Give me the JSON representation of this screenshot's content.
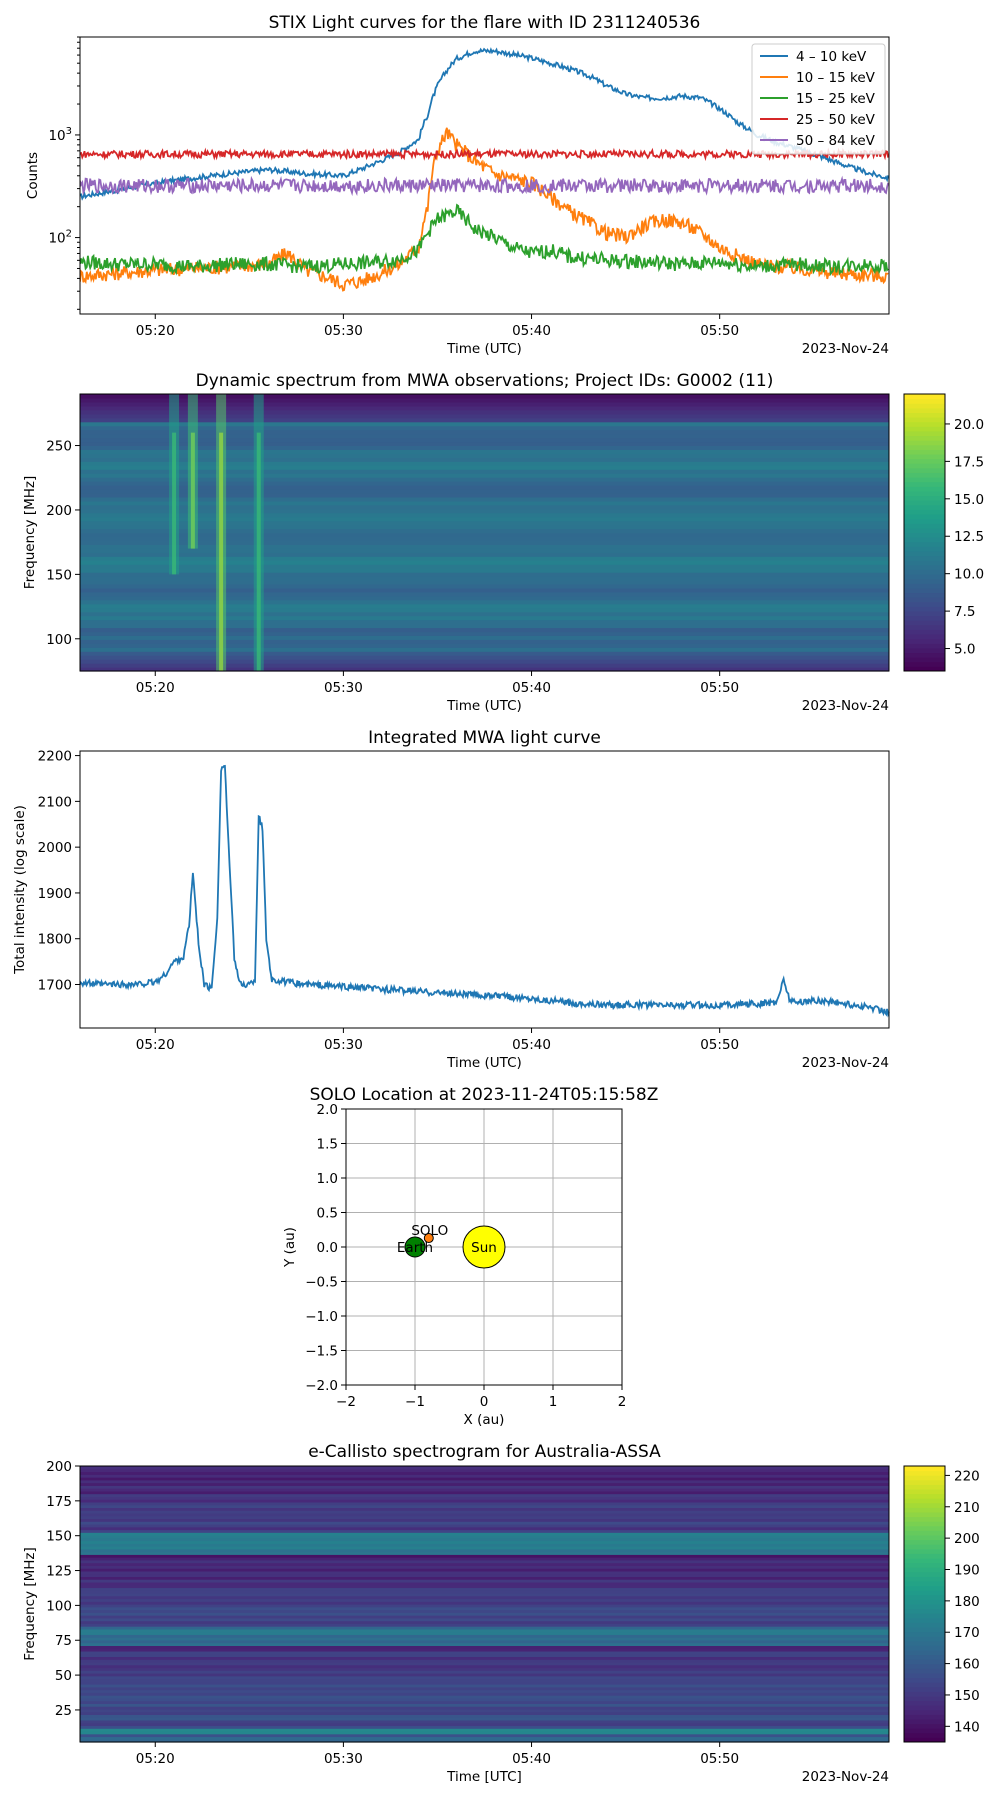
{
  "chart_data": [
    {
      "type": "line",
      "title": "STIX Light curves for the flare with ID 2311240536",
      "xlabel": "Time (UTC)",
      "ylabel": "Counts",
      "date_label": "2023-Nov-24",
      "yscale": "log",
      "xlim": [
        "05:16",
        "05:59"
      ],
      "ylim": [
        18,
        9000
      ],
      "xticks": [
        "05:20",
        "05:30",
        "05:40",
        "05:50"
      ],
      "yticks": [
        {
          "label": "10",
          "exp": "2",
          "value": 100
        },
        {
          "label": "10",
          "exp": "3",
          "value": 1000
        }
      ],
      "legend_position": "top-right",
      "series": [
        {
          "name": "4 – 10 keV",
          "color": "#1f77b4",
          "x": [
            16,
            18,
            20,
            22,
            24,
            26,
            28,
            30,
            31,
            32,
            33,
            34,
            34.5,
            35,
            36,
            37,
            38,
            39,
            40,
            41,
            42,
            43,
            44,
            45,
            46,
            47,
            48,
            49,
            50,
            51,
            52,
            53,
            54,
            55,
            56,
            57,
            58,
            59
          ],
          "y": [
            250,
            290,
            340,
            380,
            420,
            460,
            420,
            400,
            470,
            560,
            680,
            900,
            1600,
            3000,
            5500,
            6600,
            6600,
            6100,
            5600,
            5000,
            4400,
            3800,
            3000,
            2500,
            2300,
            2300,
            2400,
            2300,
            1800,
            1300,
            1000,
            850,
            750,
            650,
            560,
            480,
            420,
            380
          ]
        },
        {
          "name": "10 – 15 keV",
          "color": "#ff7f0e",
          "x": [
            16,
            18,
            20,
            22,
            24,
            26,
            27,
            28,
            29,
            30,
            31,
            32,
            33,
            34,
            34.5,
            35,
            35.5,
            36,
            37,
            38,
            39,
            40,
            41,
            42,
            43,
            44,
            45,
            46,
            47,
            48,
            49,
            50,
            51,
            52,
            53,
            54,
            55,
            56,
            57,
            58,
            59
          ],
          "y": [
            42,
            45,
            48,
            50,
            52,
            55,
            70,
            48,
            42,
            35,
            38,
            45,
            55,
            80,
            200,
            700,
            1050,
            800,
            550,
            420,
            380,
            340,
            250,
            180,
            140,
            110,
            100,
            130,
            150,
            140,
            110,
            80,
            65,
            55,
            52,
            50,
            48,
            45,
            44,
            43,
            42
          ]
        },
        {
          "name": "15 – 25 keV",
          "color": "#2ca02c",
          "x": [
            16,
            18,
            20,
            22,
            24,
            26,
            28,
            30,
            32,
            33,
            34,
            35,
            36,
            37,
            38,
            39,
            40,
            41,
            42,
            44,
            46,
            48,
            50,
            52,
            54,
            56,
            58,
            59
          ],
          "y": [
            58,
            55,
            55,
            52,
            55,
            55,
            52,
            55,
            58,
            62,
            75,
            150,
            180,
            120,
            100,
            80,
            70,
            75,
            65,
            60,
            58,
            55,
            58,
            52,
            55,
            52,
            55,
            52
          ]
        },
        {
          "name": "25 – 50 keV",
          "color": "#d62728",
          "x": [
            16,
            20,
            25,
            30,
            35,
            40,
            45,
            50,
            55,
            59
          ],
          "y": [
            650,
            650,
            650,
            650,
            650,
            650,
            650,
            650,
            650,
            650
          ]
        },
        {
          "name": "50 – 84 keV",
          "color": "#9467bd",
          "x": [
            16,
            20,
            25,
            30,
            35,
            40,
            45,
            50,
            55,
            59
          ],
          "y": [
            320,
            320,
            320,
            320,
            320,
            320,
            320,
            320,
            320,
            320
          ]
        }
      ]
    },
    {
      "type": "heatmap",
      "title": "Dynamic spectrum from MWA observations; Project IDs: G0002 (11)",
      "xlabel": "Time (UTC)",
      "ylabel": "Frequency [MHz]",
      "date_label": "2023-Nov-24",
      "xlim": [
        "05:16",
        "05:59"
      ],
      "ylim": [
        75,
        290
      ],
      "xticks": [
        "05:20",
        "05:30",
        "05:40",
        "05:50"
      ],
      "yticks": [
        100,
        150,
        200,
        250
      ],
      "colorbar": {
        "colormap": "viridis",
        "min": 3.5,
        "max": 22,
        "ticks": [
          "5.0",
          "7.5",
          "10.0",
          "12.5",
          "15.0",
          "17.5",
          "20.0"
        ]
      },
      "bursts": [
        {
          "t": 21.0,
          "f_low": 150,
          "f_high": 290,
          "value": 14
        },
        {
          "t": 22.0,
          "f_low": 170,
          "f_high": 290,
          "value": 16
        },
        {
          "t": 23.5,
          "f_low": 75,
          "f_high": 290,
          "value": 17
        },
        {
          "t": 25.5,
          "f_low": 75,
          "f_high": 290,
          "value": 14
        }
      ]
    },
    {
      "type": "line",
      "title": "Integrated MWA light curve",
      "xlabel": "Time (UTC)",
      "ylabel": "Total intensity (log scale)",
      "date_label": "2023-Nov-24",
      "xlim": [
        "05:16",
        "05:59"
      ],
      "ylim": [
        1605,
        2210
      ],
      "xticks": [
        "05:20",
        "05:30",
        "05:40",
        "05:50"
      ],
      "yticks": [
        1700,
        1800,
        1900,
        2000,
        2100,
        2200
      ],
      "series": [
        {
          "color": "#1f77b4",
          "x": [
            16,
            17,
            18,
            19,
            20,
            20.5,
            21,
            21.5,
            21.8,
            22,
            22.3,
            22.6,
            23,
            23.3,
            23.5,
            23.7,
            23.9,
            24.2,
            24.5,
            25,
            25.3,
            25.5,
            25.7,
            25.9,
            26.2,
            27,
            28,
            30,
            32,
            34,
            36,
            38,
            40,
            42,
            44,
            46,
            48,
            50,
            52,
            53,
            53.4,
            53.7,
            54,
            55,
            56,
            57,
            58,
            59
          ],
          "y": [
            1705,
            1700,
            1700,
            1700,
            1705,
            1720,
            1750,
            1760,
            1830,
            1945,
            1790,
            1700,
            1690,
            1850,
            2170,
            2180,
            2000,
            1760,
            1700,
            1700,
            1710,
            2070,
            2040,
            1800,
            1710,
            1705,
            1700,
            1695,
            1690,
            1685,
            1680,
            1675,
            1670,
            1660,
            1655,
            1655,
            1655,
            1655,
            1658,
            1660,
            1710,
            1670,
            1660,
            1665,
            1662,
            1655,
            1650,
            1640
          ]
        }
      ]
    },
    {
      "type": "scatter",
      "title": "SOLO Location at 2023-11-24T05:15:58Z",
      "xlabel": "X (au)",
      "ylabel": "Y (au)",
      "xlim": [
        -2,
        2
      ],
      "ylim": [
        -2,
        2
      ],
      "xticks": [
        "−2",
        "−1",
        "0",
        "1",
        "2"
      ],
      "yticks": [
        "−2.0",
        "−1.5",
        "−1.0",
        "−0.5",
        "0.0",
        "0.5",
        "1.0",
        "1.5",
        "2.0"
      ],
      "grid": true,
      "points": [
        {
          "name": "Sun",
          "x": 0,
          "y": 0,
          "color": "#ffff00"
        },
        {
          "name": "Earth",
          "x": -1,
          "y": 0,
          "color": "#008000"
        },
        {
          "name": "SOLO",
          "x": -0.8,
          "y": 0.13,
          "color": "#ff7f0e"
        }
      ]
    },
    {
      "type": "heatmap",
      "title": "e-Callisto spectrogram for Australia-ASSA",
      "xlabel": "Time [UTC]",
      "ylabel": "Frequency [MHz]",
      "date_label": "2023-Nov-24",
      "xlim": [
        "05:16",
        "05:59"
      ],
      "ylim": [
        2,
        200
      ],
      "xticks": [
        "05:20",
        "05:30",
        "05:40",
        "05:50"
      ],
      "yticks": [
        25,
        50,
        75,
        100,
        125,
        150,
        175,
        200
      ],
      "colorbar": {
        "colormap": "viridis",
        "min": 135,
        "max": 223,
        "ticks": [
          "140",
          "150",
          "160",
          "170",
          "180",
          "190",
          "200",
          "210",
          "220"
        ]
      },
      "bands": [
        {
          "f_low": 2,
          "f_high": 8,
          "value": 160
        },
        {
          "f_low": 8,
          "f_high": 12,
          "value": 175
        },
        {
          "f_low": 12,
          "f_high": 45,
          "value": 155
        },
        {
          "f_low": 45,
          "f_high": 68,
          "value": 150
        },
        {
          "f_low": 68,
          "f_high": 72,
          "value": 143
        },
        {
          "f_low": 72,
          "f_high": 86,
          "value": 168
        },
        {
          "f_low": 86,
          "f_high": 112,
          "value": 152
        },
        {
          "f_low": 112,
          "f_high": 133,
          "value": 146
        },
        {
          "f_low": 133,
          "f_high": 136,
          "value": 142
        },
        {
          "f_low": 136,
          "f_high": 152,
          "value": 170
        },
        {
          "f_low": 152,
          "f_high": 180,
          "value": 150
        },
        {
          "f_low": 180,
          "f_high": 200,
          "value": 145
        }
      ]
    }
  ]
}
